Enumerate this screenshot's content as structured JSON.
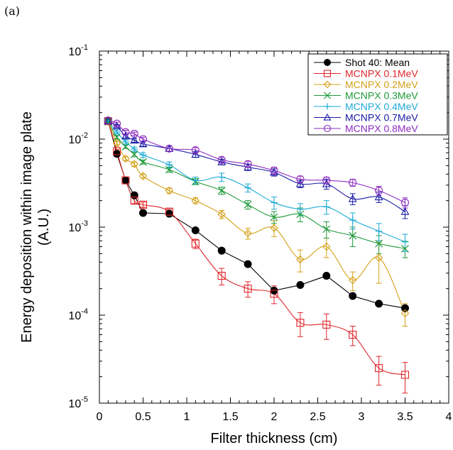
{
  "panel_label": "(a)",
  "chart_data": {
    "type": "line",
    "title": "",
    "xlabel": "Filter thickness (cm)",
    "ylabel_line1": "Energy deposition within image plate",
    "ylabel_line2": "(A.U.)",
    "xlim": [
      0,
      4
    ],
    "ylim": [
      1e-05,
      0.1
    ],
    "yscale": "log",
    "grid": false,
    "legend_position": "top-right",
    "x_ticks": [
      {
        "v": 0,
        "label": "0"
      },
      {
        "v": 0.5,
        "label": "0.5"
      },
      {
        "v": 1,
        "label": "1"
      },
      {
        "v": 1.5,
        "label": "1.5"
      },
      {
        "v": 2,
        "label": "2"
      },
      {
        "v": 2.5,
        "label": "2.5"
      },
      {
        "v": 3,
        "label": "3"
      },
      {
        "v": 3.5,
        "label": "3.5"
      },
      {
        "v": 4,
        "label": "4"
      }
    ],
    "y_ticks": [
      {
        "v": 1e-05,
        "base": "10",
        "exp": "-5"
      },
      {
        "v": 0.0001,
        "base": "10",
        "exp": "-4"
      },
      {
        "v": 0.001,
        "base": "10",
        "exp": "-3"
      },
      {
        "v": 0.01,
        "base": "10",
        "exp": "-2"
      },
      {
        "v": 0.1,
        "base": "10",
        "exp": "-1"
      }
    ],
    "series": [
      {
        "name": "Shot 40: Mean",
        "color": "#000000",
        "marker": "filled-circle",
        "smooth": false,
        "x": [
          0.1,
          0.2,
          0.3,
          0.4,
          0.5,
          0.8,
          1.1,
          1.4,
          1.7,
          2.0,
          2.3,
          2.6,
          2.9,
          3.2,
          3.5
        ],
        "y": [
          0.016,
          0.0068,
          0.0034,
          0.0023,
          0.00145,
          0.00142,
          0.00092,
          0.00054,
          0.00038,
          0.00019,
          0.00022,
          0.00028,
          0.000165,
          0.000135,
          0.00012
        ],
        "err": [
          0,
          0,
          0,
          0,
          0,
          0,
          0,
          0,
          0,
          0,
          0,
          0,
          0,
          0,
          0
        ]
      },
      {
        "name": "MCNPX 0.1MeV",
        "color": "#e0252b",
        "marker": "square",
        "smooth": true,
        "x": [
          0.1,
          0.2,
          0.3,
          0.4,
          0.5,
          0.8,
          1.1,
          1.4,
          1.7,
          2.0,
          2.3,
          2.6,
          2.9,
          3.2,
          3.5
        ],
        "y": [
          0.016,
          0.0073,
          0.0034,
          0.002,
          0.0018,
          0.0015,
          0.00065,
          0.00028,
          0.0002,
          0.000175,
          8.2e-05,
          7.8e-05,
          6e-05,
          2.5e-05,
          2.1e-05
        ],
        "err": [
          0.0005,
          0.0003,
          0.0002,
          0.00015,
          0.00012,
          0.0001,
          8e-05,
          6e-05,
          4e-05,
          4e-05,
          2.5e-05,
          2.5e-05,
          1.5e-05,
          9e-06,
          8e-06
        ]
      },
      {
        "name": "MCNPX 0.2MeV",
        "color": "#d4a017",
        "marker": "diamond",
        "smooth": true,
        "x": [
          0.1,
          0.2,
          0.3,
          0.4,
          0.5,
          0.8,
          1.1,
          1.4,
          1.7,
          2.0,
          2.3,
          2.6,
          2.9,
          3.2,
          3.5
        ],
        "y": [
          0.016,
          0.009,
          0.006,
          0.0052,
          0.0038,
          0.0026,
          0.002,
          0.0014,
          0.00085,
          0.00098,
          0.00043,
          0.0006,
          0.00025,
          0.00045,
          0.000105
        ],
        "err": [
          0.0005,
          0.0004,
          0.0003,
          0.0003,
          0.0002,
          0.00018,
          0.00015,
          0.00015,
          0.00012,
          0.0002,
          0.00012,
          0.00015,
          6e-05,
          0.00022,
          3e-05
        ]
      },
      {
        "name": "MCNPX 0.3MeV",
        "color": "#1f9a3a",
        "marker": "x",
        "smooth": true,
        "x": [
          0.1,
          0.2,
          0.3,
          0.4,
          0.5,
          0.8,
          1.1,
          1.4,
          1.7,
          2.0,
          2.3,
          2.6,
          2.9,
          3.2,
          3.5
        ],
        "y": [
          0.016,
          0.0105,
          0.0082,
          0.0067,
          0.0055,
          0.0045,
          0.0033,
          0.0026,
          0.0018,
          0.0013,
          0.0014,
          0.00095,
          0.0008,
          0.00065,
          0.00057
        ],
        "err": [
          0.0005,
          0.0005,
          0.0004,
          0.0004,
          0.0003,
          0.0003,
          0.00025,
          0.00025,
          0.0002,
          0.0002,
          0.00025,
          0.0002,
          0.0002,
          0.00015,
          0.00012
        ]
      },
      {
        "name": "MCNPX 0.4MeV",
        "color": "#1eaad6",
        "marker": "plus",
        "smooth": true,
        "x": [
          0.1,
          0.2,
          0.3,
          0.4,
          0.5,
          0.8,
          1.1,
          1.4,
          1.7,
          2.0,
          2.3,
          2.6,
          2.9,
          3.2,
          3.5
        ],
        "y": [
          0.016,
          0.012,
          0.0093,
          0.0077,
          0.0066,
          0.0051,
          0.0034,
          0.0037,
          0.0028,
          0.0019,
          0.0016,
          0.0017,
          0.0012,
          0.0009,
          0.00068
        ],
        "err": [
          0.0005,
          0.0005,
          0.0005,
          0.0004,
          0.0004,
          0.0004,
          0.0003,
          0.0004,
          0.0003,
          0.0003,
          0.00025,
          0.0003,
          0.00025,
          0.0002,
          0.00015
        ]
      },
      {
        "name": "MCNPX 0.7MeV",
        "color": "#1a1aa6",
        "marker": "triangle",
        "smooth": true,
        "x": [
          0.1,
          0.2,
          0.3,
          0.4,
          0.5,
          0.8,
          1.1,
          1.4,
          1.7,
          2.0,
          2.3,
          2.6,
          2.9,
          3.2,
          3.5
        ],
        "y": [
          0.016,
          0.014,
          0.0108,
          0.0097,
          0.0088,
          0.0078,
          0.0067,
          0.0055,
          0.0048,
          0.0042,
          0.0031,
          0.0031,
          0.0021,
          0.0022,
          0.0015
        ],
        "err": [
          0.0005,
          0.0006,
          0.0005,
          0.0005,
          0.0005,
          0.0005,
          0.0005,
          0.0004,
          0.0004,
          0.0004,
          0.0003,
          0.0004,
          0.0003,
          0.0003,
          0.00025
        ]
      },
      {
        "name": "MCNPX 0.8MeV",
        "color": "#8e2bc0",
        "marker": "circle",
        "smooth": true,
        "x": [
          0.1,
          0.2,
          0.3,
          0.4,
          0.5,
          0.8,
          1.1,
          1.4,
          1.7,
          2.0,
          2.3,
          2.6,
          2.9,
          3.2,
          3.5
        ],
        "y": [
          0.0163,
          0.015,
          0.012,
          0.0115,
          0.01,
          0.0078,
          0.0075,
          0.0058,
          0.0052,
          0.0044,
          0.0035,
          0.0034,
          0.0032,
          0.0026,
          0.0019
        ],
        "err": [
          0.0005,
          0.0006,
          0.0006,
          0.0005,
          0.0005,
          0.0005,
          0.0005,
          0.0004,
          0.0004,
          0.0004,
          0.0003,
          0.0003,
          0.0003,
          0.0003,
          0.00025
        ]
      }
    ]
  }
}
